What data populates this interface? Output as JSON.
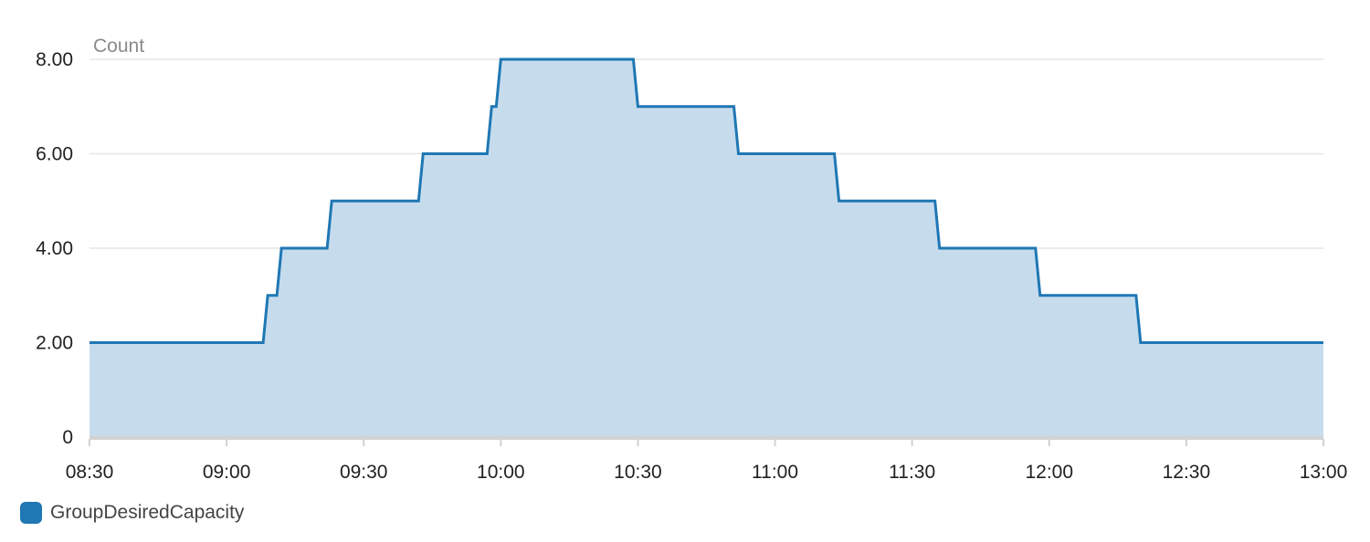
{
  "colors": {
    "line": "#1f77b4",
    "area": "#c6dced",
    "grid": "#e6e6e6",
    "axis": "#d2d2d2"
  },
  "chart_data": {
    "type": "area",
    "step": true,
    "unit_label": "Count",
    "x_ticks": [
      "08:30",
      "09:00",
      "09:30",
      "10:00",
      "10:30",
      "11:00",
      "11:30",
      "12:00",
      "12:30",
      "13:00"
    ],
    "y_ticks": [
      "0",
      "2.00",
      "4.00",
      "6.00",
      "8.00"
    ],
    "xlim": [
      "08:30",
      "13:00"
    ],
    "ylim": [
      0,
      8
    ],
    "grid": true,
    "legend_position": "bottom-left",
    "series": [
      {
        "name": "GroupDesiredCapacity",
        "points": [
          [
            "08:30",
            2
          ],
          [
            "09:08",
            2
          ],
          [
            "09:09",
            3
          ],
          [
            "09:11",
            3
          ],
          [
            "09:12",
            4
          ],
          [
            "09:22",
            4
          ],
          [
            "09:23",
            5
          ],
          [
            "09:42",
            5
          ],
          [
            "09:43",
            6
          ],
          [
            "09:57",
            6
          ],
          [
            "09:58",
            7
          ],
          [
            "09:59",
            7
          ],
          [
            "10:00",
            8
          ],
          [
            "10:29",
            8
          ],
          [
            "10:30",
            7
          ],
          [
            "10:51",
            7
          ],
          [
            "10:52",
            6
          ],
          [
            "11:13",
            6
          ],
          [
            "11:14",
            5
          ],
          [
            "11:35",
            5
          ],
          [
            "11:36",
            4
          ],
          [
            "11:57",
            4
          ],
          [
            "11:58",
            3
          ],
          [
            "12:19",
            3
          ],
          [
            "12:20",
            2
          ],
          [
            "13:00",
            2
          ]
        ]
      }
    ]
  }
}
